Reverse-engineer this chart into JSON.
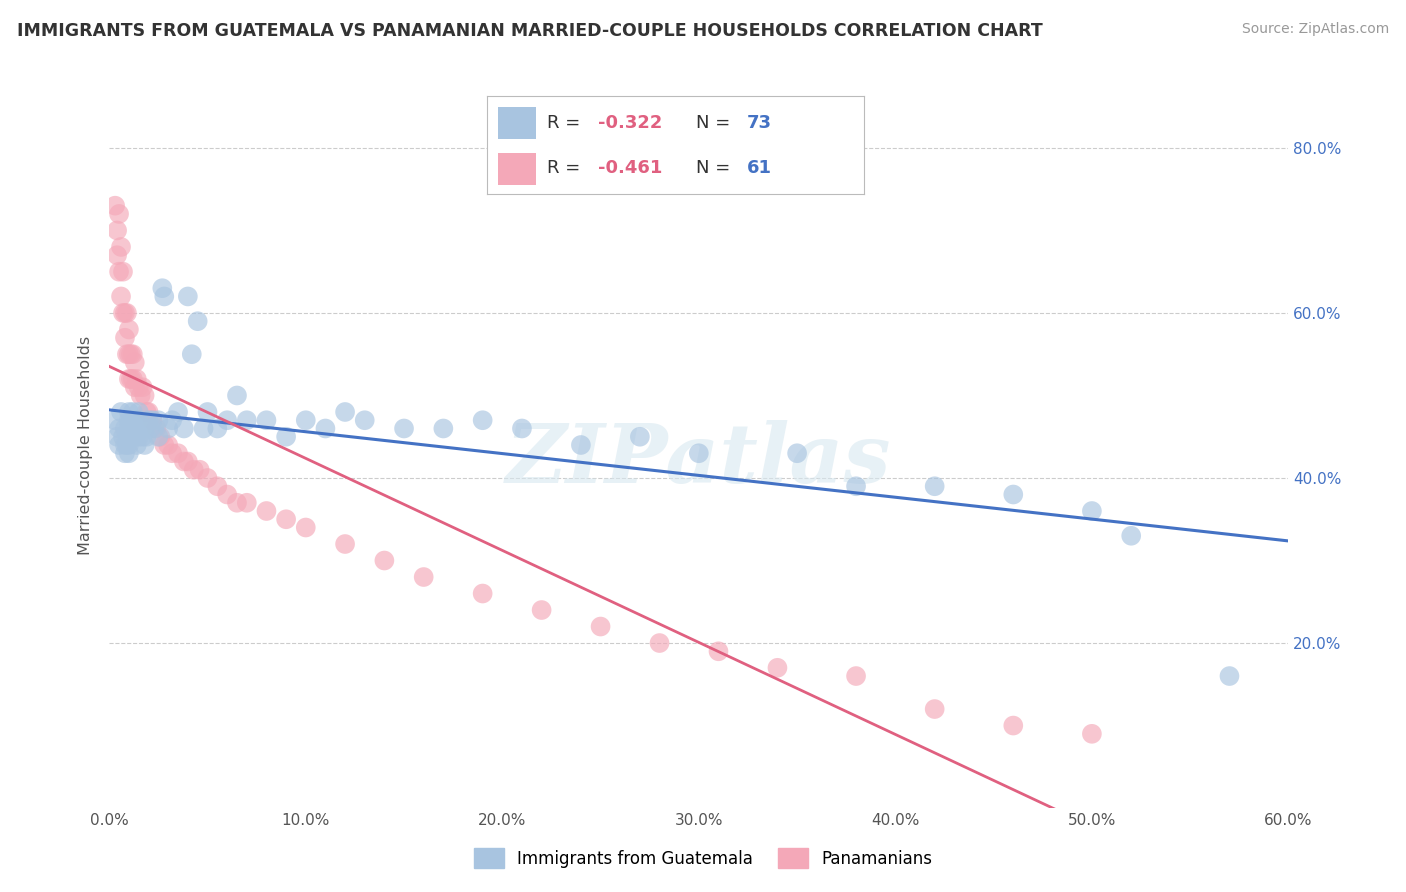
{
  "title": "IMMIGRANTS FROM GUATEMALA VS PANAMANIAN MARRIED-COUPLE HOUSEHOLDS CORRELATION CHART",
  "source": "Source: ZipAtlas.com",
  "ylabel": "Married-couple Households",
  "xlim": [
    0.0,
    0.6
  ],
  "ylim": [
    0.0,
    0.88
  ],
  "ytick_values": [
    0.2,
    0.4,
    0.6,
    0.8
  ],
  "xtick_values": [
    0.0,
    0.1,
    0.2,
    0.3,
    0.4,
    0.5,
    0.6
  ],
  "blue_R": -0.322,
  "blue_N": 73,
  "pink_R": -0.461,
  "pink_N": 61,
  "blue_color": "#a8c4e0",
  "pink_color": "#f4a8b8",
  "blue_line_color": "#4472c4",
  "pink_line_color": "#e06080",
  "r_value_color": "#e06080",
  "n_value_color": "#4472c4",
  "watermark": "ZIPatlas",
  "blue_scatter_x": [
    0.003,
    0.004,
    0.005,
    0.005,
    0.006,
    0.007,
    0.008,
    0.008,
    0.008,
    0.009,
    0.01,
    0.01,
    0.01,
    0.01,
    0.01,
    0.01,
    0.011,
    0.011,
    0.012,
    0.012,
    0.013,
    0.013,
    0.014,
    0.014,
    0.015,
    0.015,
    0.015,
    0.016,
    0.017,
    0.018,
    0.018,
    0.019,
    0.02,
    0.021,
    0.022,
    0.023,
    0.025,
    0.025,
    0.027,
    0.028,
    0.03,
    0.032,
    0.035,
    0.038,
    0.04,
    0.042,
    0.045,
    0.048,
    0.05,
    0.055,
    0.06,
    0.065,
    0.07,
    0.08,
    0.09,
    0.1,
    0.11,
    0.12,
    0.13,
    0.15,
    0.17,
    0.19,
    0.21,
    0.24,
    0.27,
    0.3,
    0.35,
    0.38,
    0.42,
    0.46,
    0.5,
    0.52,
    0.57
  ],
  "blue_scatter_y": [
    0.47,
    0.45,
    0.46,
    0.44,
    0.48,
    0.45,
    0.46,
    0.44,
    0.43,
    0.44,
    0.48,
    0.47,
    0.46,
    0.45,
    0.44,
    0.43,
    0.47,
    0.45,
    0.48,
    0.46,
    0.47,
    0.45,
    0.46,
    0.44,
    0.48,
    0.47,
    0.45,
    0.46,
    0.45,
    0.46,
    0.44,
    0.45,
    0.47,
    0.46,
    0.47,
    0.46,
    0.47,
    0.45,
    0.63,
    0.62,
    0.46,
    0.47,
    0.48,
    0.46,
    0.62,
    0.55,
    0.59,
    0.46,
    0.48,
    0.46,
    0.47,
    0.5,
    0.47,
    0.47,
    0.45,
    0.47,
    0.46,
    0.48,
    0.47,
    0.46,
    0.46,
    0.47,
    0.46,
    0.44,
    0.45,
    0.43,
    0.43,
    0.39,
    0.39,
    0.38,
    0.36,
    0.33,
    0.16
  ],
  "pink_scatter_x": [
    0.003,
    0.004,
    0.004,
    0.005,
    0.005,
    0.006,
    0.006,
    0.007,
    0.007,
    0.008,
    0.008,
    0.009,
    0.009,
    0.01,
    0.01,
    0.01,
    0.011,
    0.011,
    0.012,
    0.012,
    0.013,
    0.013,
    0.014,
    0.015,
    0.016,
    0.017,
    0.018,
    0.019,
    0.02,
    0.022,
    0.024,
    0.026,
    0.028,
    0.03,
    0.032,
    0.035,
    0.038,
    0.04,
    0.043,
    0.046,
    0.05,
    0.055,
    0.06,
    0.065,
    0.07,
    0.08,
    0.09,
    0.1,
    0.12,
    0.14,
    0.16,
    0.19,
    0.22,
    0.25,
    0.28,
    0.31,
    0.34,
    0.38,
    0.42,
    0.46,
    0.5
  ],
  "pink_scatter_y": [
    0.73,
    0.7,
    0.67,
    0.72,
    0.65,
    0.68,
    0.62,
    0.65,
    0.6,
    0.6,
    0.57,
    0.6,
    0.55,
    0.58,
    0.55,
    0.52,
    0.55,
    0.52,
    0.55,
    0.52,
    0.54,
    0.51,
    0.52,
    0.51,
    0.5,
    0.51,
    0.5,
    0.48,
    0.48,
    0.47,
    0.46,
    0.45,
    0.44,
    0.44,
    0.43,
    0.43,
    0.42,
    0.42,
    0.41,
    0.41,
    0.4,
    0.39,
    0.38,
    0.37,
    0.37,
    0.36,
    0.35,
    0.34,
    0.32,
    0.3,
    0.28,
    0.26,
    0.24,
    0.22,
    0.2,
    0.19,
    0.17,
    0.16,
    0.12,
    0.1,
    0.09
  ]
}
